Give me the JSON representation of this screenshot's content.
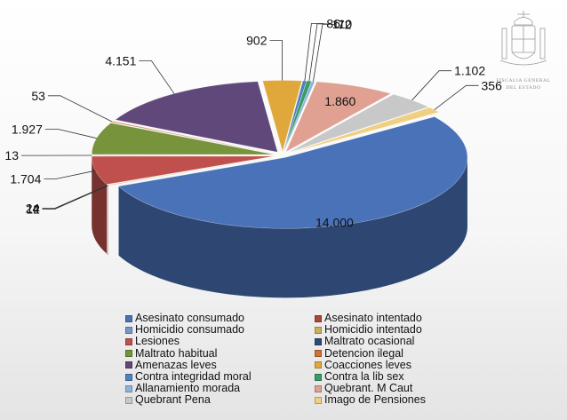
{
  "chart_data": {
    "type": "pie",
    "style": "3d-exploded",
    "title": "",
    "slices": [
      {
        "name": "Asesinato consumado",
        "value": 14000,
        "label": "14.000",
        "color": "#4a72b8"
      },
      {
        "name": "Asesinato intentado",
        "value": 12,
        "label": "12",
        "color": "#a8473b"
      },
      {
        "name": "Homicidio consumado",
        "value": 4,
        "label": "4",
        "color": "#7a96c5"
      },
      {
        "name": "Homicidio intentado",
        "value": 24,
        "label": "24",
        "color": "#c9b25a"
      },
      {
        "name": "Lesiones",
        "value": 1704,
        "label": "1.704",
        "color": "#c0504d"
      },
      {
        "name": "Maltrato ocasional",
        "value": 13,
        "label": "13",
        "color": "#2e4a7a"
      },
      {
        "name": "Maltrato habitual",
        "value": 1927,
        "label": "1.927",
        "color": "#77933c"
      },
      {
        "name": "Detencion ilegal",
        "value": 53,
        "label": "53",
        "color": "#d0703a"
      },
      {
        "name": "Amenazas leves",
        "value": 4151,
        "label": "4.151",
        "color": "#60497a"
      },
      {
        "name": "Coacciones leves",
        "value": 902,
        "label": "902",
        "color": "#e0a83a"
      },
      {
        "name": "Contra integridad moral",
        "value": 86,
        "label": "86",
        "color": "#4f81bd"
      },
      {
        "name": "Contra la lib sex",
        "value": 110,
        "label": "110",
        "color": "#3a9a6a"
      },
      {
        "name": "Allanamiento morada",
        "value": 72,
        "label": "72",
        "color": "#8fb4d9"
      },
      {
        "name": "Quebrant. M Caut",
        "value": 1860,
        "label": "1.860",
        "color": "#e0a193"
      },
      {
        "name": "Quebrant Pena",
        "value": 1102,
        "label": "1.102",
        "color": "#c8c8c8"
      },
      {
        "name": "Imago de Pensiones",
        "value": 356,
        "label": "356",
        "color": "#f0d080"
      }
    ],
    "legend": "bottom"
  },
  "legend_order": [
    "Asesinato consumado",
    "Asesinato intentado",
    "Homicidio consumado",
    "Homicidio intentado",
    "Lesiones",
    "Maltrato ocasional",
    "Maltrato habitual",
    "Detencion ilegal",
    "Amenazas leves",
    "Coacciones leves",
    "Contra integridad moral",
    "Contra la lib sex",
    "Allanamiento morada",
    "Quebrant. M Caut",
    "Quebrant Pena",
    "Imago de Pensiones"
  ],
  "logo": {
    "line1": "FISCALIA GENERAL",
    "line2": "DEL ESTADO"
  }
}
